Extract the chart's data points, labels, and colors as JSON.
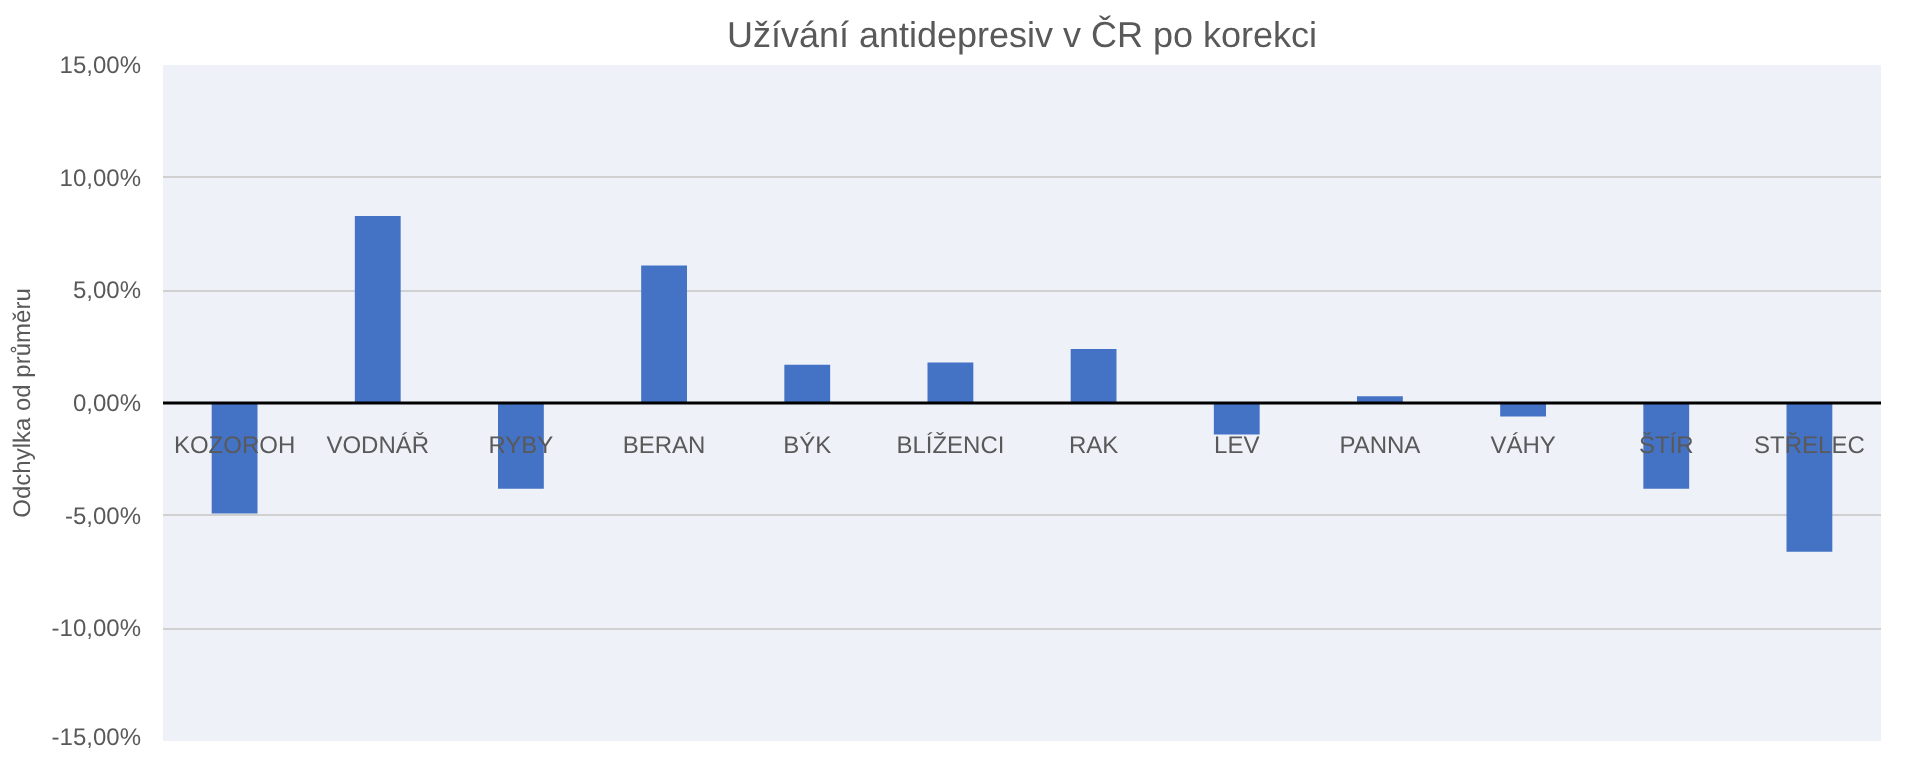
{
  "chart_data": {
    "type": "bar",
    "title": "Užívání antidepresiv v ČR po korekci",
    "ylabel": "Odchylka od průměru",
    "categories": [
      "KOZOROH",
      "VODNÁŘ",
      "RYBY",
      "BERAN",
      "BÝK",
      "BLÍŽENCI",
      "RAK",
      "LEV",
      "PANNA",
      "VÁHY",
      "ŠTÍR",
      "STŘELEC"
    ],
    "values": [
      -4.9,
      8.3,
      -3.8,
      6.1,
      1.7,
      1.8,
      2.4,
      -1.4,
      0.3,
      -0.6,
      -3.8,
      -6.6
    ],
    "color": "#4472c4",
    "ylim": [
      -15,
      15
    ],
    "yticks": [
      {
        "value": -15,
        "label": "-15,00%"
      },
      {
        "value": -10,
        "label": "-10,00%"
      },
      {
        "value": -5,
        "label": "-5,00%"
      },
      {
        "value": 0,
        "label": "0,00%"
      },
      {
        "value": 5,
        "label": "5,00%"
      },
      {
        "value": 10,
        "label": "10,00%"
      },
      {
        "value": 15,
        "label": "15,00%"
      }
    ],
    "grid": "y",
    "legend": false
  }
}
